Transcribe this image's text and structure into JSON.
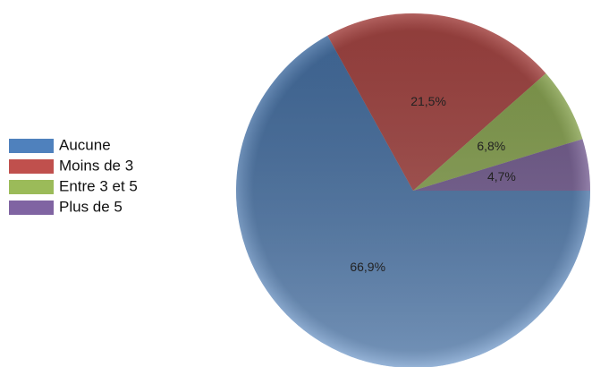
{
  "chart_data": {
    "type": "pie",
    "categories": [
      "Aucune",
      "Moins de 3",
      "Entre 3 et 5",
      "Plus de 5"
    ],
    "values": [
      66.9,
      21.5,
      6.8,
      4.7
    ],
    "value_labels": [
      "66,9%",
      "21,5%",
      "6,8%",
      "4,7%"
    ],
    "colors": [
      "#4f81bd",
      "#c0504d",
      "#9bbb59",
      "#8064a2"
    ],
    "legend": "left"
  }
}
